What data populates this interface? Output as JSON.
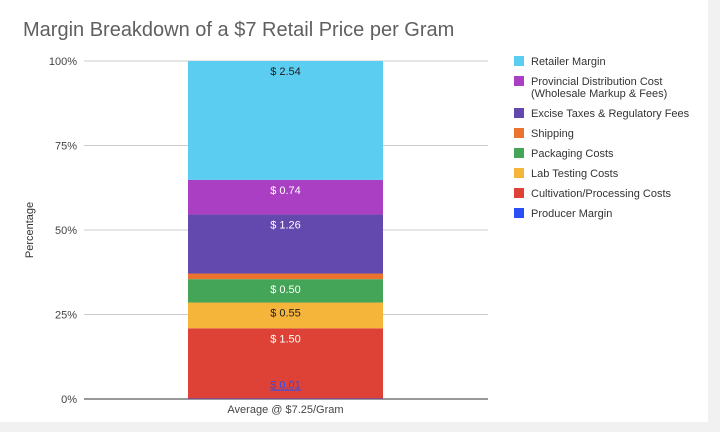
{
  "chart_data": {
    "type": "bar",
    "stacked": true,
    "normalized": true,
    "title": "Margin Breakdown of a $7 Retail Price per Gram",
    "xlabel": "",
    "ylabel": "Percentage",
    "categories": [
      "Average @ $7.25/Gram"
    ],
    "y_ticks": [
      "0%",
      "25%",
      "50%",
      "75%",
      "100%"
    ],
    "ylim": [
      0,
      100
    ],
    "legend_position": "right",
    "series": [
      {
        "name": "Producer Margin",
        "values": [
          0.01
        ],
        "label": "$ 0.01",
        "color": "#2a4ff5"
      },
      {
        "name": "Cultivation/Processing Costs",
        "values": [
          1.5
        ],
        "label": "$ 1.50",
        "color": "#de4237"
      },
      {
        "name": "Lab Testing Costs",
        "values": [
          0.55
        ],
        "label": "$ 0.55",
        "color": "#f5b43a"
      },
      {
        "name": "Packaging Costs",
        "values": [
          0.5
        ],
        "label": "$ 0.50",
        "color": "#44a457"
      },
      {
        "name": "Shipping",
        "values": [
          0.12
        ],
        "label": "",
        "color": "#ec7230"
      },
      {
        "name": "Excise Taxes & Regulatory Fees",
        "values": [
          1.26
        ],
        "label": "$ 1.26",
        "color": "#6348ad"
      },
      {
        "name": "Provincial Distribution Cost\n(Wholesale Markup & Fees)",
        "values": [
          0.74
        ],
        "label": "$ 0.74",
        "color": "#ab3fc3"
      },
      {
        "name": "Retailer Margin",
        "values": [
          2.54
        ],
        "label": "$ 2.54",
        "color": "#5bcdf1"
      }
    ],
    "label_colors": {
      "Producer Margin": "#2a4ff5",
      "Lab Testing Costs": "#222222",
      "Retailer Margin": "#222222",
      "default": "#ffffff"
    },
    "legend_order": [
      "Retailer Margin",
      "Provincial Distribution Cost\n(Wholesale Markup & Fees)",
      "Excise Taxes & Regulatory Fees",
      "Shipping",
      "Packaging Costs",
      "Lab Testing Costs",
      "Cultivation/Processing Costs",
      "Producer Margin"
    ],
    "grid": true
  }
}
